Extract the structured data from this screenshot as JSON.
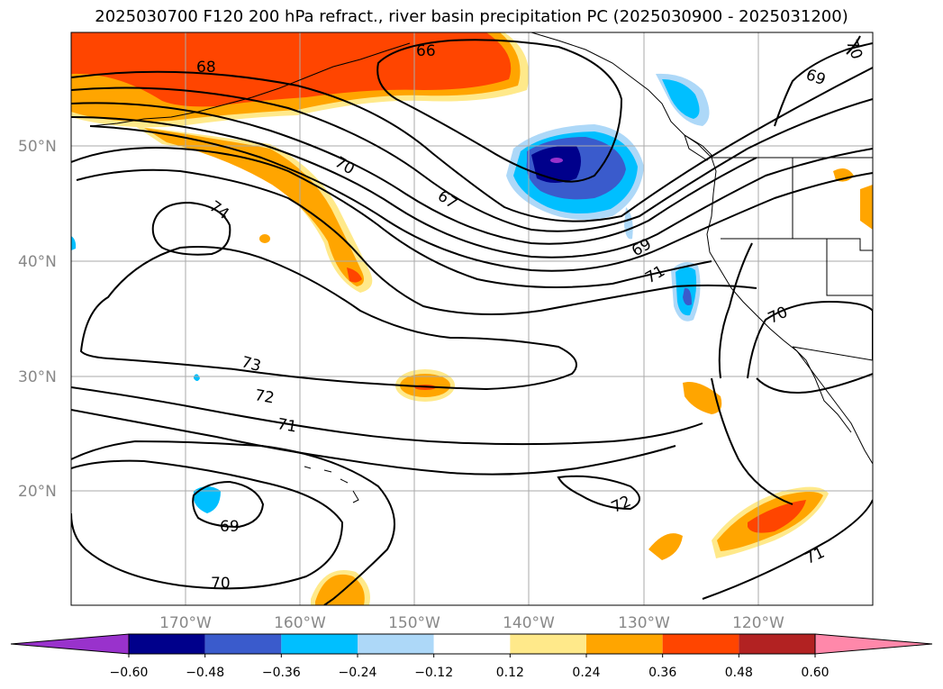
{
  "title": "2025030700 F120 200 hPa refract., river basin precipitation PC (2025030900 - 2025031200)",
  "map": {
    "lat_labels": [
      "50°N",
      "40°N",
      "30°N",
      "20°N"
    ],
    "lon_labels": [
      "170°W",
      "160°W",
      "150°W",
      "140°W",
      "130°W",
      "120°W"
    ],
    "contour_labels": [
      "68",
      "66",
      "69",
      "70",
      "74",
      "67",
      "69",
      "71",
      "70",
      "73",
      "72",
      "71",
      "69",
      "70",
      "72",
      "71"
    ]
  },
  "colorbar": {
    "ticks": [
      "−0.60",
      "−0.48",
      "−0.36",
      "−0.24",
      "−0.12",
      "0.12",
      "0.24",
      "0.36",
      "0.48",
      "0.60"
    ],
    "colors": [
      "#9932cc",
      "#00008b",
      "#3a5bcc",
      "#00bfff",
      "#add8f8",
      "#ffffff",
      "#ffe98a",
      "#ffa500",
      "#ff4500",
      "#b22222",
      "#ff88aa"
    ]
  }
}
